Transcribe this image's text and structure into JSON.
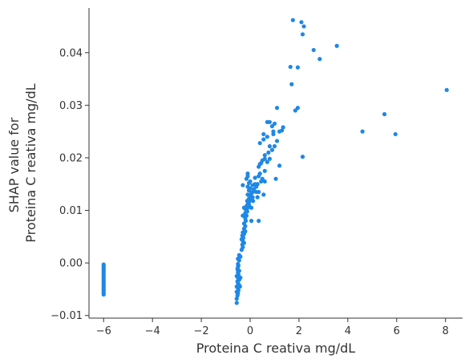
{
  "chart_data": {
    "type": "scatter",
    "title": "",
    "xlabel": "Proteina C reativa mg/dL",
    "ylabel_lines": [
      "SHAP value for",
      "Proteina C reativa mg/dL"
    ],
    "xlim": [
      -6.6,
      8.7
    ],
    "ylim": [
      -0.0105,
      0.0485
    ],
    "x_ticks": [
      -6,
      -4,
      -2,
      0,
      2,
      4,
      6,
      8
    ],
    "x_tick_labels": [
      "−6",
      "−4",
      "−2",
      "0",
      "2",
      "4",
      "6",
      "8"
    ],
    "y_ticks": [
      -0.01,
      0.0,
      0.01,
      0.02,
      0.03,
      0.04
    ],
    "y_tick_labels": [
      "−0.01",
      "0.00",
      "0.01",
      "0.02",
      "0.03",
      "0.04"
    ],
    "grid": false,
    "point_color": "#1e88e5",
    "series": [
      {
        "points": [
          [
            -6.0,
            -0.0003
          ],
          [
            -6.0,
            -0.0006
          ],
          [
            -6.0,
            -0.0009
          ],
          [
            -6.0,
            -0.0012
          ],
          [
            -6.0,
            -0.0015
          ],
          [
            -6.0,
            -0.0018
          ],
          [
            -6.0,
            -0.0021
          ],
          [
            -6.0,
            -0.0024
          ],
          [
            -6.0,
            -0.0027
          ],
          [
            -6.0,
            -0.003
          ],
          [
            -6.0,
            -0.0033
          ],
          [
            -6.0,
            -0.0036
          ],
          [
            -6.0,
            -0.0039
          ],
          [
            -6.0,
            -0.0042
          ],
          [
            -6.0,
            -0.0045
          ],
          [
            -6.0,
            -0.0048
          ],
          [
            -6.0,
            -0.0051
          ],
          [
            -6.0,
            -0.0054
          ],
          [
            -6.0,
            -0.0057
          ],
          [
            -6.0,
            -0.006
          ],
          [
            -0.55,
            -0.0076
          ],
          [
            -0.55,
            -0.0068
          ],
          [
            -0.52,
            -0.0062
          ],
          [
            -0.5,
            -0.0058
          ],
          [
            -0.55,
            -0.0055
          ],
          [
            -0.48,
            -0.0052
          ],
          [
            -0.5,
            -0.0048
          ],
          [
            -0.55,
            -0.0045
          ],
          [
            -0.45,
            -0.0042
          ],
          [
            -0.5,
            -0.0038
          ],
          [
            -0.52,
            -0.0035
          ],
          [
            -0.45,
            -0.0032
          ],
          [
            -0.5,
            -0.0028
          ],
          [
            -0.55,
            -0.0025
          ],
          [
            -0.48,
            -0.0022
          ],
          [
            -0.5,
            -0.0018
          ],
          [
            -0.45,
            -0.0015
          ],
          [
            -0.52,
            -0.0012
          ],
          [
            -0.5,
            -0.0008
          ],
          [
            -0.48,
            -0.0005
          ],
          [
            -0.5,
            -0.0002
          ],
          [
            -0.45,
            0.0005
          ],
          [
            -0.5,
            0.0008
          ],
          [
            -0.4,
            0.0012
          ],
          [
            -0.45,
            0.0015
          ],
          [
            -0.42,
            -0.0045
          ],
          [
            -0.4,
            -0.0028
          ],
          [
            -0.35,
            0.0025
          ],
          [
            -0.3,
            0.003
          ],
          [
            -0.32,
            0.0035
          ],
          [
            -0.25,
            0.0038
          ],
          [
            -0.3,
            0.0042
          ],
          [
            -0.35,
            0.0045
          ],
          [
            -0.28,
            0.0048
          ],
          [
            -0.32,
            0.0052
          ],
          [
            -0.25,
            0.0055
          ],
          [
            -0.3,
            0.0058
          ],
          [
            -0.2,
            0.006
          ],
          [
            -0.25,
            0.0065
          ],
          [
            -0.2,
            0.007
          ],
          [
            -0.25,
            0.0075
          ],
          [
            -0.18,
            0.008
          ],
          [
            -0.2,
            0.0085
          ],
          [
            -0.15,
            0.009
          ],
          [
            -0.2,
            0.0095
          ],
          [
            -0.12,
            0.0098
          ],
          [
            -0.18,
            0.0102
          ],
          [
            -0.1,
            0.0105
          ],
          [
            -0.15,
            0.0108
          ],
          [
            -0.05,
            0.011
          ],
          [
            -0.1,
            0.0112
          ],
          [
            -0.05,
            0.0115
          ],
          [
            -0.12,
            0.0118
          ],
          [
            0.0,
            0.012
          ],
          [
            -0.05,
            0.0122
          ],
          [
            0.05,
            0.0125
          ],
          [
            0.0,
            0.0128
          ],
          [
            -0.1,
            0.013
          ],
          [
            0.05,
            0.0132
          ],
          [
            0.1,
            0.0135
          ],
          [
            -0.05,
            0.0138
          ],
          [
            0.15,
            0.014
          ],
          [
            0.0,
            0.0142
          ],
          [
            -0.1,
            0.0145
          ],
          [
            0.1,
            0.0148
          ],
          [
            -0.3,
            0.0148
          ],
          [
            0.2,
            0.015
          ],
          [
            -0.05,
            0.0152
          ],
          [
            0.0,
            0.0155
          ],
          [
            -0.15,
            0.016
          ],
          [
            -0.1,
            0.0165
          ],
          [
            -0.1,
            0.017
          ],
          [
            0.1,
            0.0125
          ],
          [
            0.12,
            0.0118
          ],
          [
            0.05,
            0.0105
          ],
          [
            0.25,
            0.0135
          ],
          [
            0.25,
            0.0145
          ],
          [
            0.35,
            0.0135
          ],
          [
            0.05,
            0.008
          ],
          [
            -0.25,
            0.0105
          ],
          [
            -0.3,
            0.009
          ],
          [
            0.35,
            0.0165
          ],
          [
            0.2,
            0.0162
          ],
          [
            0.4,
            0.017
          ],
          [
            0.6,
            0.0155
          ],
          [
            0.5,
            0.016
          ],
          [
            0.3,
            0.0125
          ],
          [
            0.45,
            0.0155
          ],
          [
            0.55,
            0.013
          ],
          [
            0.3,
            0.015
          ],
          [
            0.35,
            0.008
          ],
          [
            0.35,
            0.0183
          ],
          [
            0.4,
            0.0188
          ],
          [
            0.45,
            0.019
          ],
          [
            0.5,
            0.0195
          ],
          [
            0.6,
            0.0198
          ],
          [
            0.7,
            0.0192
          ],
          [
            0.8,
            0.0198
          ],
          [
            0.6,
            0.0205
          ],
          [
            0.75,
            0.021
          ],
          [
            0.9,
            0.0215
          ],
          [
            0.8,
            0.0222
          ],
          [
            1.0,
            0.0222
          ],
          [
            0.4,
            0.0228
          ],
          [
            0.55,
            0.0235
          ],
          [
            1.1,
            0.0232
          ],
          [
            0.7,
            0.024
          ],
          [
            0.95,
            0.0245
          ],
          [
            0.55,
            0.0245
          ],
          [
            1.2,
            0.025
          ],
          [
            1.35,
            0.0258
          ],
          [
            0.9,
            0.026
          ],
          [
            0.8,
            0.0268
          ],
          [
            0.7,
            0.0268
          ],
          [
            1.0,
            0.0265
          ],
          [
            1.1,
            0.0295
          ],
          [
            1.3,
            0.0252
          ],
          [
            1.2,
            0.0185
          ],
          [
            1.05,
            0.016
          ],
          [
            0.6,
            0.0175
          ],
          [
            0.95,
            0.025
          ],
          [
            1.75,
            0.0462
          ],
          [
            2.1,
            0.0458
          ],
          [
            2.2,
            0.045
          ],
          [
            2.15,
            0.0435
          ],
          [
            2.6,
            0.0405
          ],
          [
            2.85,
            0.0388
          ],
          [
            3.55,
            0.0413
          ],
          [
            1.65,
            0.0373
          ],
          [
            1.95,
            0.0372
          ],
          [
            1.7,
            0.034
          ],
          [
            1.85,
            0.029
          ],
          [
            1.95,
            0.0295
          ],
          [
            2.15,
            0.0202
          ],
          [
            4.6,
            0.025
          ],
          [
            5.5,
            0.0283
          ],
          [
            5.95,
            0.0245
          ],
          [
            8.05,
            0.0329
          ]
        ]
      }
    ]
  }
}
